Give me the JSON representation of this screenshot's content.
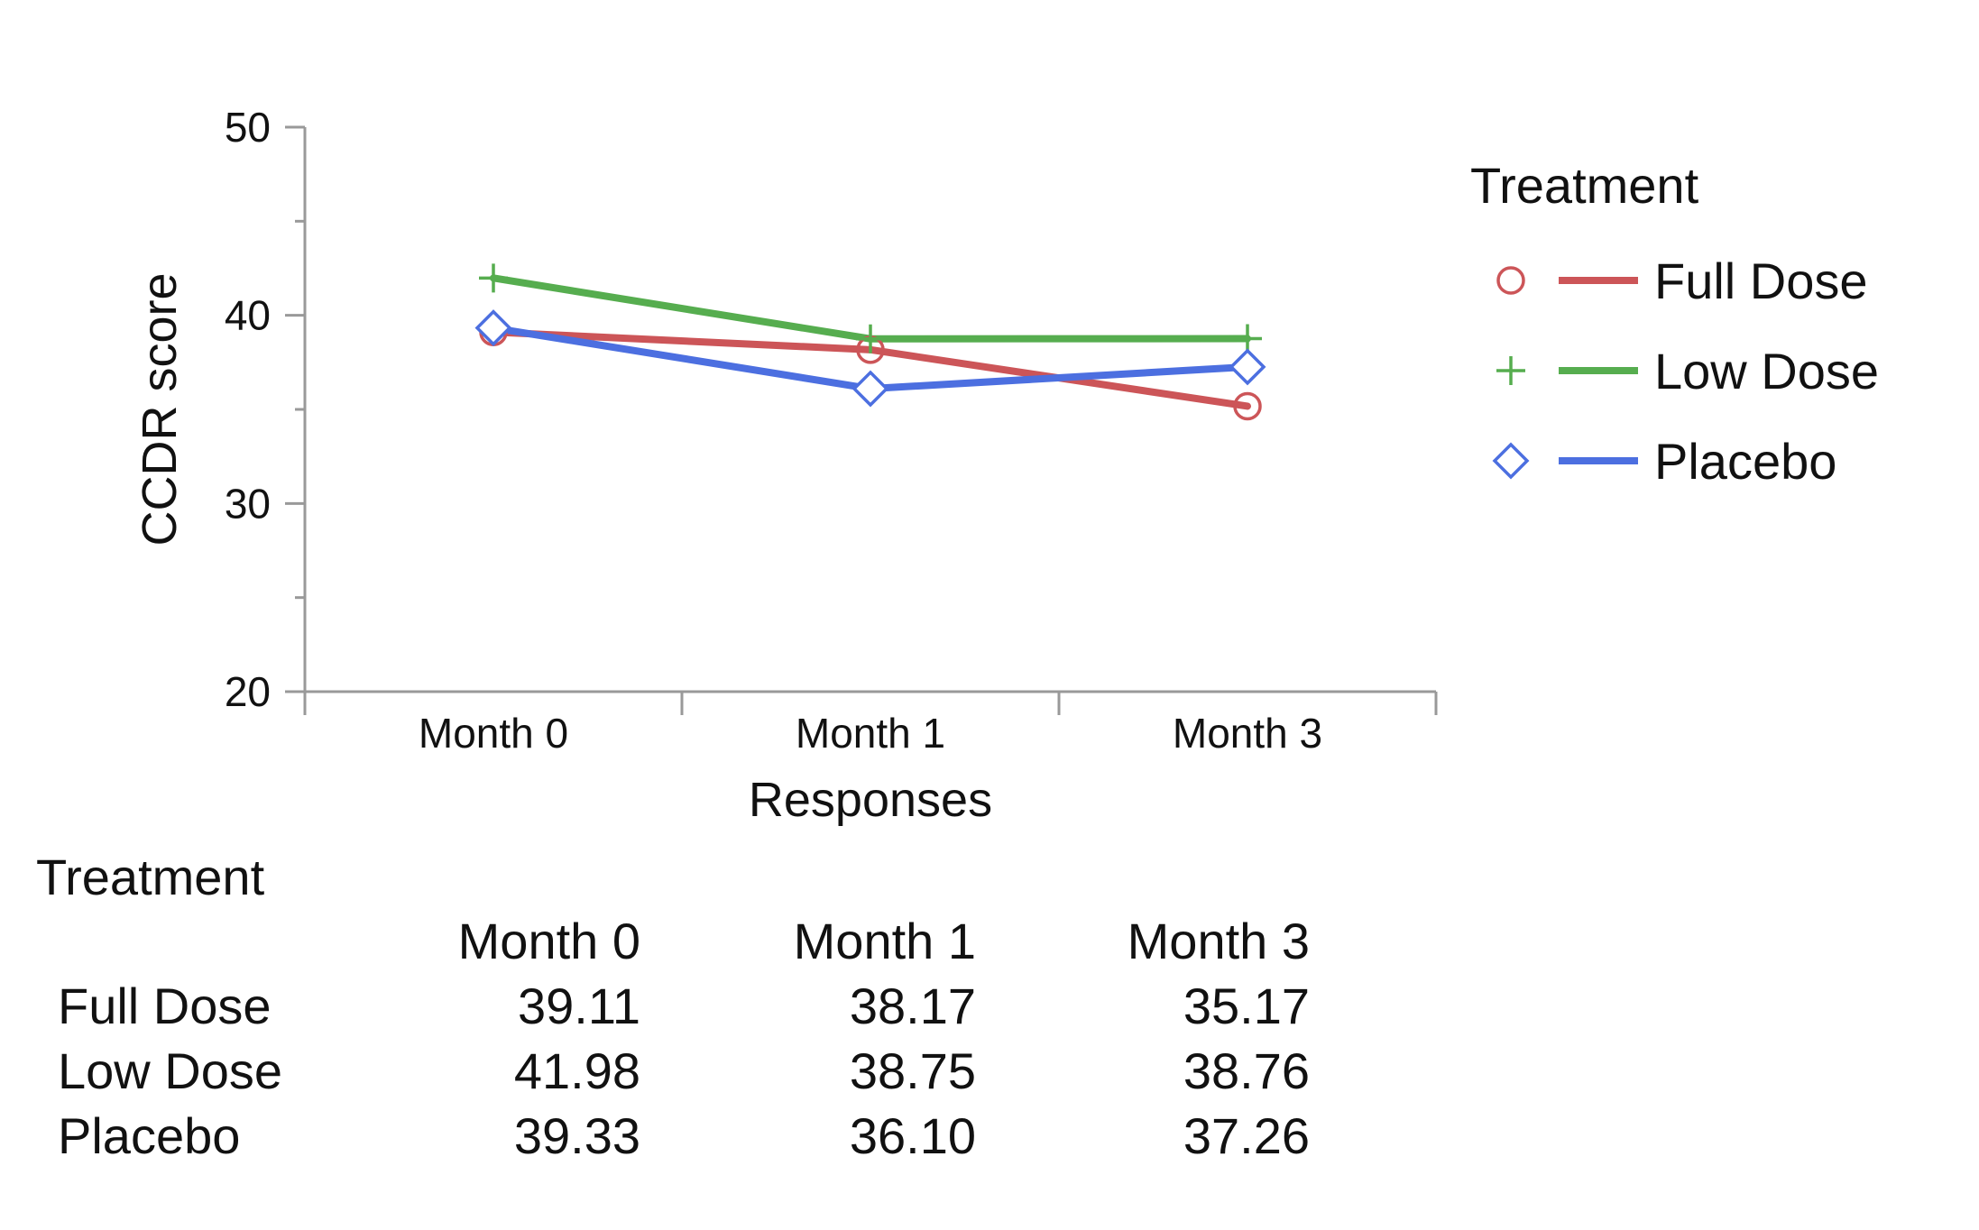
{
  "chart_data": {
    "type": "line",
    "xlabel": "Responses",
    "ylabel": "CCDR score",
    "categories": [
      "Month 0",
      "Month 1",
      "Month 3"
    ],
    "ylim": [
      20,
      50
    ],
    "yticks": [
      20,
      30,
      40,
      50
    ],
    "legend": {
      "title": "Treatment",
      "position": "right"
    },
    "series": [
      {
        "name": "Full Dose",
        "values": [
          39.11,
          38.17,
          35.17
        ],
        "color": "#CC5558",
        "marker": "circle"
      },
      {
        "name": "Low Dose",
        "values": [
          41.98,
          38.75,
          38.76
        ],
        "color": "#56AD4F",
        "marker": "plus"
      },
      {
        "name": "Placebo",
        "values": [
          39.33,
          36.1,
          37.26
        ],
        "color": "#4C6FE0",
        "marker": "diamond"
      }
    ]
  },
  "table": {
    "title": "Treatment",
    "columns": [
      "Month 0",
      "Month 1",
      "Month 3"
    ],
    "rows": [
      {
        "name": "Full Dose",
        "values": [
          "39.11",
          "38.17",
          "35.17"
        ]
      },
      {
        "name": "Low Dose",
        "values": [
          "41.98",
          "38.75",
          "38.76"
        ]
      },
      {
        "name": "Placebo",
        "values": [
          "39.33",
          "36.10",
          "37.26"
        ]
      }
    ]
  }
}
